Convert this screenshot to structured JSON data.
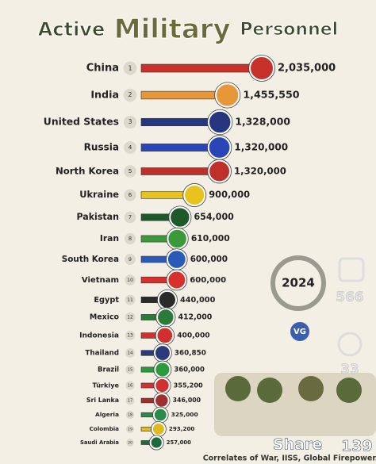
{
  "chart_data": {
    "type": "bar",
    "orientation": "horizontal",
    "title_parts": [
      "Active",
      "Military",
      "Personnel"
    ],
    "categories": [
      "China",
      "India",
      "United States",
      "Russia",
      "North Korea",
      "Ukraine",
      "Pakistan",
      "Iran",
      "South Korea",
      "Vietnam",
      "Egypt",
      "Mexico",
      "Indonesia",
      "Thailand",
      "Brazil",
      "Türkiye",
      "Sri Lanka",
      "Algeria",
      "Colombia",
      "Saudi Arabia"
    ],
    "ranks": [
      1,
      2,
      3,
      4,
      5,
      6,
      7,
      8,
      9,
      10,
      11,
      12,
      13,
      14,
      15,
      16,
      17,
      18,
      19,
      20
    ],
    "values": [
      2035000,
      1455550,
      1328000,
      1320000,
      1320000,
      900000,
      654000,
      610000,
      600000,
      600000,
      440000,
      412000,
      400000,
      360850,
      360000,
      355200,
      346000,
      325000,
      293200,
      257000
    ],
    "value_labels": [
      "2,035,000",
      "1,455,550",
      "1,328,000",
      "1,320,000",
      "1,320,000",
      "900,000",
      "654,000",
      "610,000",
      "600,000",
      "600,000",
      "440,000",
      "412,000",
      "400,000",
      "360,850",
      "360,000",
      "355,200",
      "346,000",
      "325,000",
      "293,200",
      "257,000"
    ],
    "colors": [
      "#c8312a",
      "#e8963a",
      "#26367f",
      "#2a45b8",
      "#c0302a",
      "#e6c31f",
      "#1d5a2a",
      "#3a9a3a",
      "#2a5ab8",
      "#d8302a",
      "#2a2a2a",
      "#2a7a3a",
      "#d03030",
      "#2a3a7a",
      "#2a9a3a",
      "#d03030",
      "#a03030",
      "#2a8a4a",
      "#e0b820",
      "#1a6a3a"
    ],
    "year": "2024",
    "logo": "VG",
    "source": "Correlates of War, IISS, Global Firepower."
  },
  "overlay": {
    "likes": "566",
    "comments": "33",
    "share": "Share",
    "shares": "139"
  }
}
